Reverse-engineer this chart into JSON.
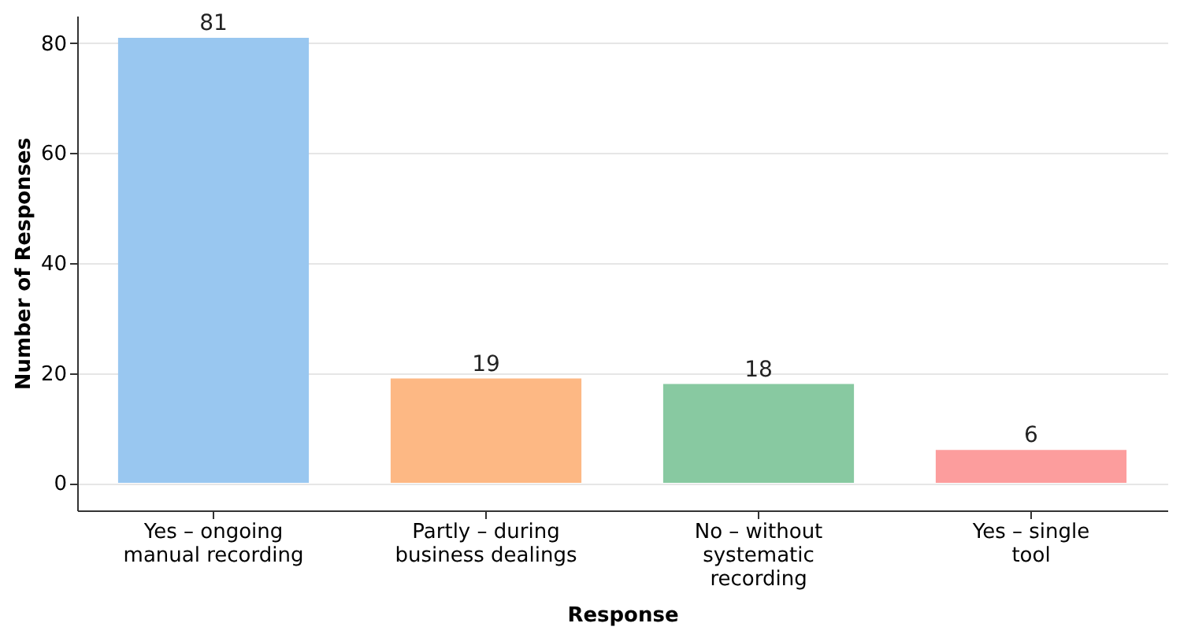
{
  "chart_data": {
    "type": "bar",
    "categories": [
      "Yes – ongoing\nmanual recording",
      "Partly – during\nbusiness dealings",
      "No – without\nsystematic\nrecording",
      "Yes – single\ntool"
    ],
    "values": [
      81,
      19,
      18,
      6
    ],
    "colors": [
      "#99c7f0",
      "#fdb884",
      "#88c9a1",
      "#fc9d9d"
    ],
    "xlabel": "Response",
    "ylabel": "Number of Responses",
    "ylim": [
      -5,
      85
    ],
    "yticks": [
      0,
      20,
      40,
      60,
      80
    ],
    "grid": "y",
    "data_labels": true
  }
}
